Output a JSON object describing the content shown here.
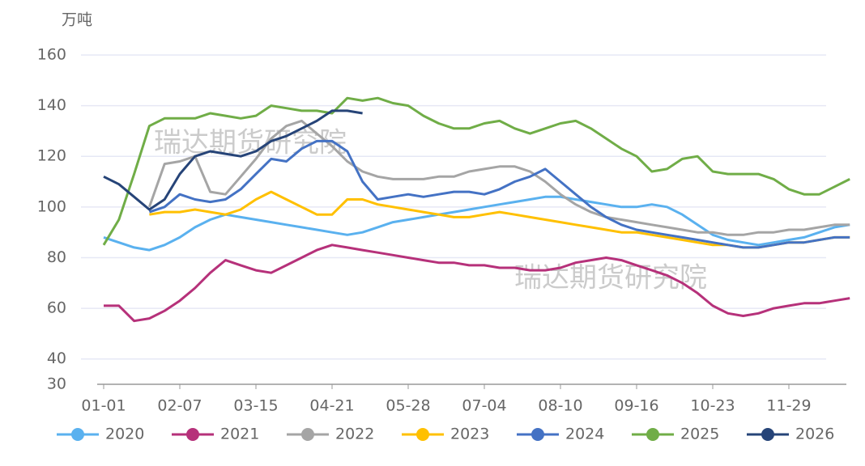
{
  "chart_data": {
    "type": "line",
    "y_label": "万吨",
    "watermarks": [
      "瑞达期货研究院",
      "瑞达期货研究院"
    ],
    "categories": [
      "01-01",
      null,
      null,
      null,
      null,
      "02-07",
      null,
      null,
      null,
      null,
      "03-15",
      null,
      null,
      null,
      null,
      "04-21",
      null,
      null,
      null,
      null,
      "05-28",
      null,
      null,
      null,
      null,
      "07-04",
      null,
      null,
      null,
      null,
      "08-10",
      null,
      null,
      null,
      null,
      "09-16",
      null,
      null,
      null,
      null,
      "10-23",
      null,
      null,
      null,
      null,
      "11-29",
      null,
      null,
      null,
      null
    ],
    "ylim": [
      30,
      160
    ],
    "yticks": [
      30,
      40,
      60,
      80,
      100,
      120,
      140,
      160
    ],
    "grid": true,
    "series": [
      {
        "name": "2020",
        "color": "#5ab1ef",
        "values": [
          88,
          86,
          84,
          83,
          85,
          88,
          92,
          95,
          97,
          96,
          95,
          94,
          93,
          92,
          91,
          90,
          89,
          90,
          92,
          94,
          95,
          96,
          97,
          98,
          99,
          100,
          101,
          102,
          103,
          104,
          104,
          103,
          102,
          101,
          100,
          100,
          101,
          100,
          97,
          93,
          89,
          87,
          86,
          85,
          86,
          87,
          88,
          90,
          92,
          93
        ]
      },
      {
        "name": "2021",
        "color": "#b6317a",
        "values": [
          61,
          61,
          55,
          56,
          59,
          63,
          68,
          74,
          79,
          77,
          75,
          74,
          77,
          80,
          83,
          85,
          84,
          83,
          82,
          81,
          80,
          79,
          78,
          78,
          77,
          77,
          76,
          76,
          75,
          75,
          76,
          78,
          79,
          80,
          79,
          77,
          75,
          73,
          70,
          66,
          61,
          58,
          57,
          58,
          60,
          61,
          62,
          62,
          63,
          64
        ]
      },
      {
        "name": "2022",
        "color": "#a5a5a5",
        "values": [
          null,
          null,
          null,
          100,
          117,
          118,
          120,
          106,
          105,
          112,
          119,
          127,
          132,
          134,
          129,
          124,
          118,
          114,
          112,
          111,
          111,
          111,
          112,
          112,
          114,
          115,
          116,
          116,
          114,
          110,
          105,
          101,
          98,
          96,
          95,
          94,
          93,
          92,
          91,
          90,
          90,
          89,
          89,
          90,
          90,
          91,
          91,
          92,
          93,
          93
        ]
      },
      {
        "name": "2023",
        "color": "#ffc000",
        "values": [
          null,
          null,
          null,
          97,
          98,
          98,
          99,
          98,
          97,
          99,
          103,
          106,
          103,
          100,
          97,
          97,
          103,
          103,
          101,
          100,
          99,
          98,
          97,
          96,
          96,
          97,
          98,
          97,
          96,
          95,
          94,
          93,
          92,
          91,
          90,
          90,
          89,
          88,
          87,
          86,
          85,
          85,
          84,
          84,
          85,
          86,
          86,
          87,
          88,
          88
        ]
      },
      {
        "name": "2024",
        "color": "#4472c4",
        "values": [
          null,
          null,
          null,
          98,
          100,
          105,
          103,
          102,
          103,
          107,
          113,
          119,
          118,
          123,
          126,
          126,
          122,
          110,
          103,
          104,
          105,
          104,
          105,
          106,
          106,
          105,
          107,
          110,
          112,
          115,
          110,
          105,
          100,
          96,
          93,
          91,
          90,
          89,
          88,
          87,
          86,
          85,
          84,
          84,
          85,
          86,
          86,
          87,
          88,
          88
        ]
      },
      {
        "name": "2025",
        "color": "#70ad47",
        "values": [
          85,
          95,
          113,
          132,
          135,
          135,
          135,
          137,
          136,
          135,
          136,
          140,
          139,
          138,
          138,
          137,
          143,
          142,
          143,
          141,
          140,
          136,
          133,
          131,
          131,
          133,
          134,
          131,
          129,
          131,
          133,
          134,
          131,
          127,
          123,
          120,
          114,
          115,
          119,
          120,
          114,
          113,
          113,
          113,
          111,
          107,
          105,
          105,
          108,
          111
        ]
      },
      {
        "name": "2026",
        "color": "#264478",
        "values": [
          112,
          109,
          104,
          99,
          103,
          113,
          120,
          122,
          121,
          120,
          122,
          126,
          128,
          131,
          134,
          138,
          138,
          137,
          null,
          null,
          null,
          null,
          null,
          null,
          null,
          null,
          null,
          null,
          null,
          null,
          null,
          null,
          null,
          null,
          null,
          null,
          null,
          null,
          null,
          null,
          null,
          null,
          null,
          null,
          null,
          null,
          null,
          null,
          null,
          null
        ]
      }
    ]
  }
}
